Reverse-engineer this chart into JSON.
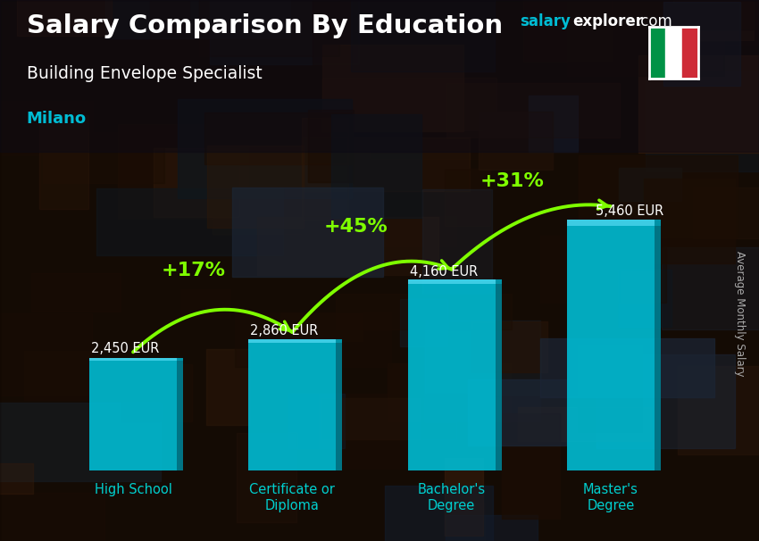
{
  "title": "Salary Comparison By Education",
  "subtitle": "Building Envelope Specialist",
  "city": "Milano",
  "categories": [
    "High School",
    "Certificate or\nDiploma",
    "Bachelor's\nDegree",
    "Master's\nDegree"
  ],
  "values": [
    2450,
    2860,
    4160,
    5460
  ],
  "value_labels": [
    "2,450 EUR",
    "2,860 EUR",
    "4,160 EUR",
    "5,460 EUR"
  ],
  "pct_labels": [
    "+17%",
    "+45%",
    "+31%"
  ],
  "bar_color": "#00BCD4",
  "bar_color_light": "#40D8F0",
  "bar_color_dark": "#007A8C",
  "pct_color": "#7FFF00",
  "title_color": "#FFFFFF",
  "subtitle_color": "#FFFFFF",
  "city_color": "#00BCD4",
  "value_color": "#FFFFFF",
  "xlabel_color": "#00CFCF",
  "ylabel_text": "Average Monthly Salary",
  "ylim_max": 7000,
  "bar_width": 0.55,
  "bg_color": "#2a1a0e",
  "header_bg": "#1a0f08"
}
